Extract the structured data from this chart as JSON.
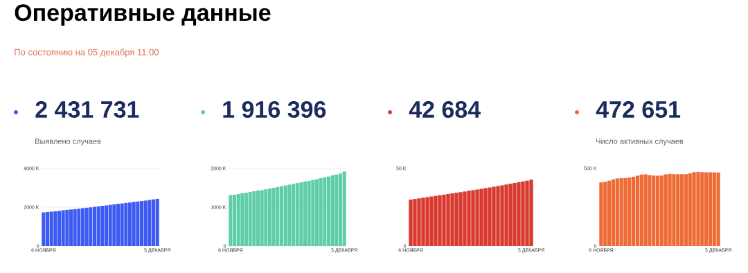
{
  "chart_data": [
    {
      "type": "other",
      "title": "Оперативные данные",
      "subtitle": "По состоянию на 05 декабря 11:00"
    },
    {
      "type": "bar",
      "title": "2 431 731",
      "subtitle": "Выявлено случаев",
      "color": "#3d5af1",
      "grid": "y",
      "categories": [
        "6 НОЯБРЯ",
        null,
        null,
        null,
        null,
        null,
        null,
        null,
        null,
        null,
        null,
        null,
        null,
        null,
        null,
        null,
        null,
        null,
        null,
        null,
        null,
        null,
        null,
        null,
        null,
        null,
        null,
        null,
        null,
        "5 ДЕКАБРЯ"
      ],
      "values": [
        1730,
        1750,
        1770,
        1790,
        1810,
        1840,
        1860,
        1880,
        1900,
        1920,
        1950,
        1970,
        1990,
        2020,
        2040,
        2070,
        2090,
        2120,
        2140,
        2170,
        2190,
        2220,
        2240,
        2270,
        2290,
        2320,
        2340,
        2370,
        2400,
        2430
      ],
      "ylim": [
        0,
        4000
      ],
      "yticks": [
        0,
        {
          "value": 2000,
          "label": "2000 K"
        },
        {
          "value": 4000,
          "label": "4000 K"
        }
      ]
    },
    {
      "type": "bar",
      "title": "1 916 396",
      "color": "#5fcda5",
      "grid": "y",
      "categories": [
        "6 НОЯБРЯ",
        null,
        null,
        null,
        null,
        null,
        null,
        null,
        null,
        null,
        null,
        null,
        null,
        null,
        null,
        null,
        null,
        null,
        null,
        null,
        null,
        null,
        null,
        null,
        null,
        null,
        null,
        null,
        null,
        "5 ДЕКАБРЯ"
      ],
      "values": [
        1310,
        1320,
        1340,
        1360,
        1370,
        1390,
        1410,
        1430,
        1440,
        1460,
        1480,
        1500,
        1520,
        1540,
        1560,
        1580,
        1600,
        1620,
        1640,
        1660,
        1680,
        1700,
        1720,
        1750,
        1770,
        1790,
        1820,
        1840,
        1870,
        1920
      ],
      "ylim": [
        0,
        2000
      ],
      "yticks": [
        0,
        {
          "value": 1000,
          "label": "1000 K"
        },
        {
          "value": 2000,
          "label": "2000 K"
        }
      ]
    },
    {
      "type": "bar",
      "title": "42 684",
      "color": "#d93a2f",
      "categories": [
        "6 НОЯБРЯ",
        null,
        null,
        null,
        null,
        null,
        null,
        null,
        null,
        null,
        null,
        null,
        null,
        null,
        null,
        null,
        null,
        null,
        null,
        null,
        null,
        null,
        null,
        null,
        null,
        null,
        null,
        null,
        null,
        "5 ДЕКАБРЯ"
      ],
      "values": [
        29.9,
        30.3,
        30.7,
        31.1,
        31.5,
        31.9,
        32.3,
        32.7,
        33.1,
        33.5,
        33.9,
        34.3,
        34.7,
        35.1,
        35.6,
        36.0,
        36.4,
        36.8,
        37.3,
        37.7,
        38.2,
        38.6,
        39.1,
        39.6,
        40.1,
        40.6,
        41.1,
        41.6,
        42.1,
        42.7
      ],
      "ylim": [
        0,
        50
      ],
      "yticks": [
        0,
        {
          "value": 50,
          "label": "50 K"
        }
      ]
    },
    {
      "type": "bar",
      "title": "472 651",
      "subtitle": "Число активных случаев",
      "color": "#ef6b36",
      "categories": [
        "6 НОЯБРЯ",
        null,
        null,
        null,
        null,
        null,
        null,
        null,
        null,
        null,
        null,
        null,
        null,
        null,
        null,
        null,
        null,
        null,
        null,
        null,
        null,
        null,
        null,
        null,
        null,
        null,
        null,
        null,
        null,
        "5 ДЕКАБРЯ"
      ],
      "values": [
        410,
        413,
        421,
        429,
        435,
        437,
        438,
        441,
        446,
        453,
        460,
        462,
        456,
        454,
        453,
        454,
        462,
        465,
        463,
        463,
        463,
        463,
        468,
        476,
        478,
        476,
        475,
        475,
        474,
        473
      ],
      "ylim": [
        0,
        500
      ],
      "yticks": [
        0,
        {
          "value": 500,
          "label": "500 K"
        }
      ]
    }
  ]
}
